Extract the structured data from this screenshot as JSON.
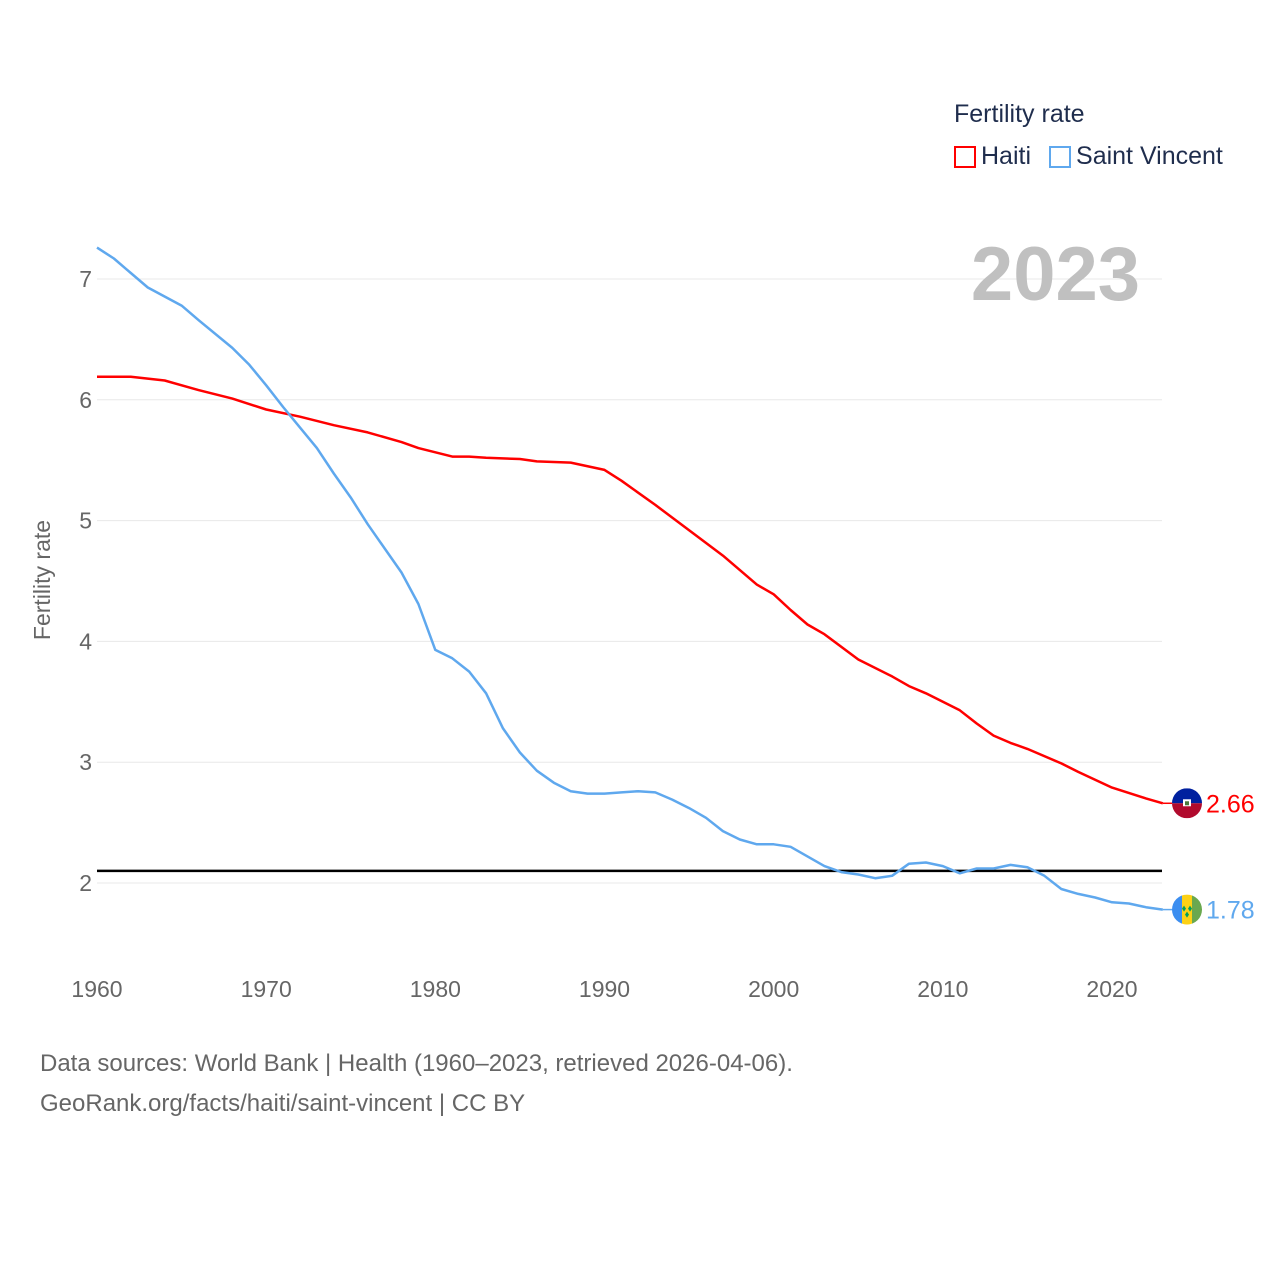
{
  "chart_data": {
    "type": "line",
    "title": "",
    "ylabel": "Fertility rate",
    "xlabel": "",
    "xlim": [
      1960,
      2023
    ],
    "ylim": [
      1.5,
      7.5
    ],
    "xticks": [
      "1960",
      "1970",
      "1980",
      "1990",
      "2000",
      "2010",
      "2020"
    ],
    "yticks": [
      "2",
      "3",
      "4",
      "5",
      "6",
      "7"
    ],
    "grid": true,
    "year_label": "2023",
    "reference_line": 2.1,
    "legend": {
      "title": "Fertility rate",
      "placement": "top-right"
    },
    "series": [
      {
        "name": "Haiti",
        "color": "#ff0000",
        "end_label": "2.66",
        "flag": "haiti-flag",
        "x": [
          1960,
          1962,
          1964,
          1966,
          1968,
          1970,
          1972,
          1974,
          1976,
          1978,
          1979,
          1981,
          1982,
          1983,
          1985,
          1986,
          1988,
          1990,
          1991,
          1993,
          1995,
          1997,
          1999,
          2000,
          2001,
          2002,
          2003,
          2005,
          2007,
          2008,
          2009,
          2011,
          2012,
          2013,
          2014,
          2015,
          2017,
          2018,
          2020,
          2022,
          2023
        ],
        "values": [
          6.19,
          6.19,
          6.16,
          6.08,
          6.01,
          5.92,
          5.86,
          5.79,
          5.73,
          5.65,
          5.6,
          5.53,
          5.53,
          5.52,
          5.51,
          5.49,
          5.48,
          5.42,
          5.33,
          5.13,
          4.92,
          4.71,
          4.47,
          4.39,
          4.26,
          4.14,
          4.06,
          3.85,
          3.71,
          3.63,
          3.57,
          3.43,
          3.32,
          3.22,
          3.16,
          3.11,
          2.99,
          2.92,
          2.79,
          2.7,
          2.66
        ]
      },
      {
        "name": "Saint Vincent",
        "color": "#5fa8ee",
        "end_label": "1.78",
        "flag": "saint-vincent-flag",
        "x": [
          1960,
          1961,
          1962,
          1963,
          1965,
          1966,
          1968,
          1969,
          1970,
          1971,
          1972,
          1973,
          1974,
          1975,
          1976,
          1977,
          1978,
          1979,
          1980,
          1981,
          1982,
          1983,
          1984,
          1985,
          1986,
          1987,
          1988,
          1989,
          1990,
          1991,
          1992,
          1993,
          1994,
          1995,
          1996,
          1997,
          1998,
          1999,
          2000,
          2001,
          2002,
          2003,
          2004,
          2005,
          2006,
          2007,
          2008,
          2009,
          2010,
          2011,
          2012,
          2013,
          2014,
          2015,
          2016,
          2017,
          2018,
          2019,
          2020,
          2021,
          2022,
          2023
        ],
        "values": [
          7.26,
          7.17,
          7.05,
          6.93,
          6.78,
          6.66,
          6.43,
          6.29,
          6.12,
          5.94,
          5.77,
          5.6,
          5.39,
          5.19,
          4.97,
          4.77,
          4.57,
          4.31,
          3.93,
          3.86,
          3.75,
          3.57,
          3.28,
          3.08,
          2.93,
          2.83,
          2.76,
          2.74,
          2.74,
          2.75,
          2.76,
          2.75,
          2.69,
          2.62,
          2.54,
          2.43,
          2.36,
          2.32,
          2.32,
          2.3,
          2.22,
          2.14,
          2.09,
          2.07,
          2.04,
          2.06,
          2.16,
          2.17,
          2.14,
          2.08,
          2.12,
          2.12,
          2.15,
          2.13,
          2.06,
          1.95,
          1.91,
          1.88,
          1.84,
          1.83,
          1.8,
          1.78
        ]
      }
    ]
  },
  "footer": {
    "line1": "Data sources: World Bank | Health (1960–2023, retrieved 2026-04-06).",
    "line2": "GeoRank.org/facts/haiti/saint-vincent | CC BY"
  }
}
